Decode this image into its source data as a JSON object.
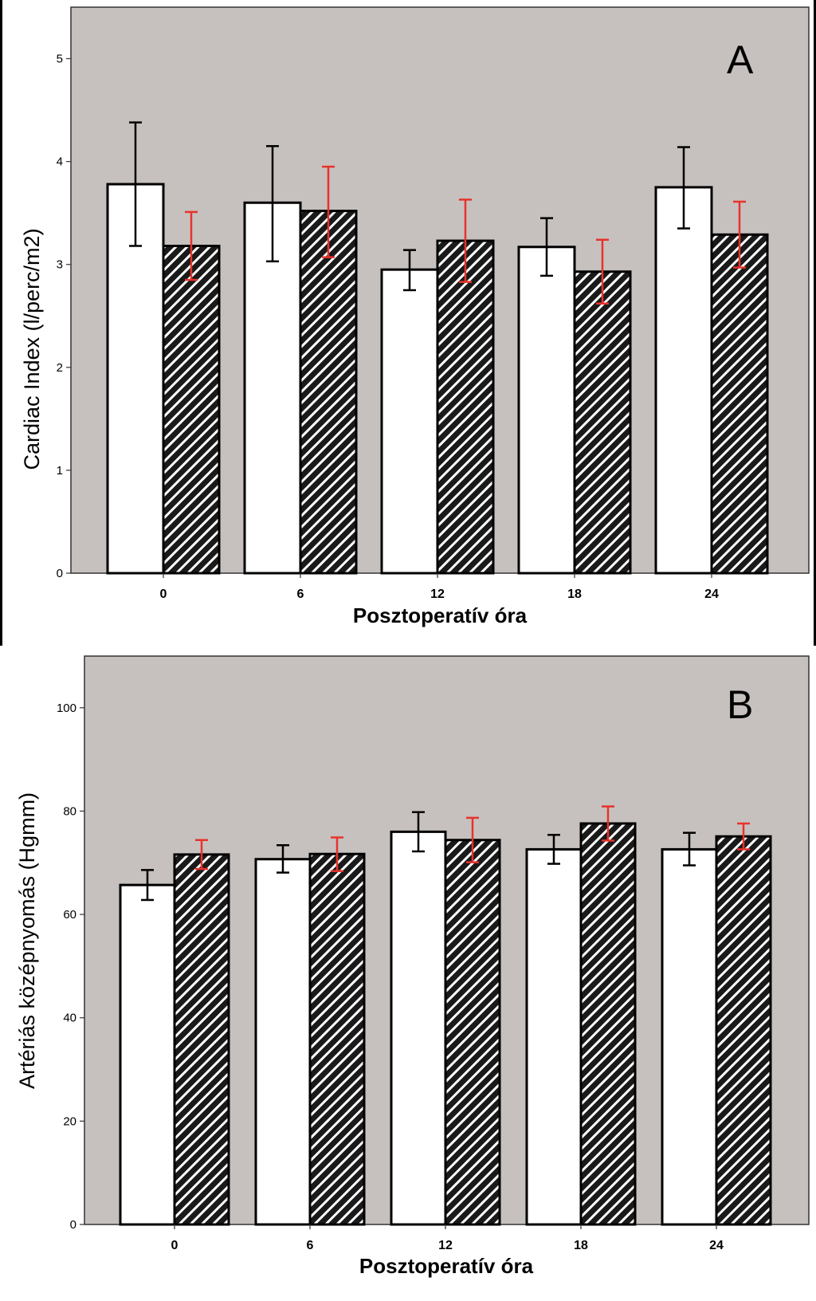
{
  "colors": {
    "plot_background": "#c6c1be",
    "bar_outline": "#000000",
    "bar_solid_fill": "#ffffff",
    "bar_hatch_fill": "#1a1a1a",
    "hatch_stroke": "#ffffff",
    "error_bar_solid": "#000000",
    "error_bar_hatched": "#e8322c"
  },
  "chart_data": [
    {
      "type": "bar",
      "panel_label": "A",
      "title": "",
      "xlabel": "Posztoperatív óra",
      "ylabel": "Cardiac Index (l/perc/m2)",
      "categories": [
        "0",
        "6",
        "12",
        "18",
        "24"
      ],
      "ylim": [
        0,
        5.5
      ],
      "yticks": [
        0,
        1,
        2,
        3,
        4,
        5
      ],
      "grid": false,
      "legend": "none",
      "series": [
        {
          "style": "white",
          "values": [
            3.78,
            3.6,
            2.95,
            3.17,
            3.75
          ],
          "error_low": [
            3.18,
            3.03,
            2.75,
            2.89,
            3.35
          ],
          "error_high": [
            4.38,
            4.15,
            3.14,
            3.45,
            4.14
          ]
        },
        {
          "style": "hatched",
          "values": [
            3.18,
            3.52,
            3.23,
            2.93,
            3.29
          ],
          "error_low": [
            2.85,
            3.07,
            2.83,
            2.62,
            2.97
          ],
          "error_high": [
            3.51,
            3.95,
            3.63,
            3.24,
            3.61
          ]
        }
      ]
    },
    {
      "type": "bar",
      "panel_label": "B",
      "title": "",
      "xlabel": "Posztoperatív óra",
      "ylabel": "Artériás középnyomás (Hgmm)",
      "categories": [
        "0",
        "6",
        "12",
        "18",
        "24"
      ],
      "ylim": [
        0,
        110
      ],
      "yticks": [
        0,
        20,
        40,
        60,
        80,
        100
      ],
      "grid": false,
      "legend": "none",
      "series": [
        {
          "style": "white",
          "values": [
            65.7,
            70.7,
            76.0,
            72.6,
            72.6
          ],
          "error_low": [
            62.8,
            68.1,
            72.2,
            69.8,
            69.5
          ],
          "error_high": [
            68.6,
            73.4,
            79.8,
            75.4,
            75.8
          ]
        },
        {
          "style": "hatched",
          "values": [
            71.6,
            71.7,
            74.4,
            77.6,
            75.1
          ],
          "error_low": [
            68.8,
            68.4,
            70.1,
            74.3,
            72.6
          ],
          "error_high": [
            74.4,
            74.9,
            78.7,
            80.9,
            77.6
          ]
        }
      ]
    }
  ]
}
